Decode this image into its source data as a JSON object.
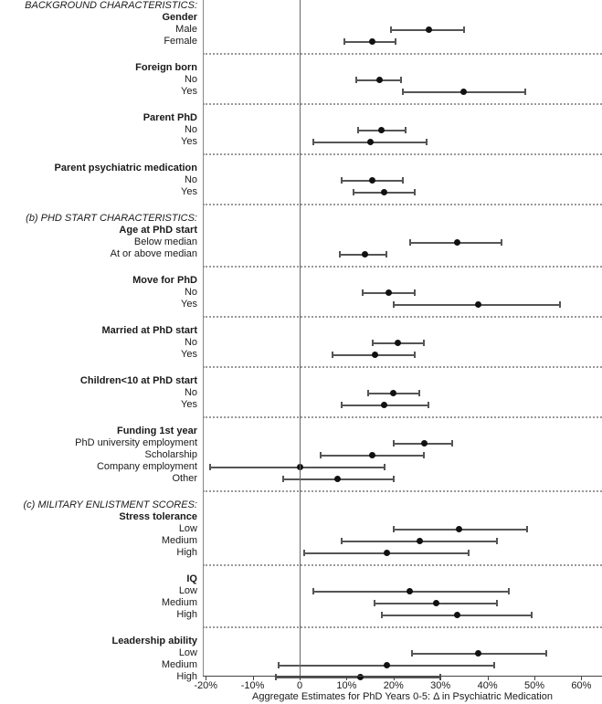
{
  "chart_data": {
    "type": "forest",
    "title": "",
    "x_axis": {
      "label": "Aggregate Estimates for PhD Years 0-5: Δ in Psychiatric Medication",
      "tick_labels": [
        "-20%",
        "-10%",
        "0",
        "10%",
        "20%",
        "30%",
        "40%",
        "50%",
        "60%"
      ],
      "tick_values": [
        -20,
        -10,
        0,
        10,
        20,
        30,
        40,
        50,
        60
      ],
      "range": [
        -20.6,
        64.4
      ],
      "unit": "%",
      "zero_reference_line": true
    },
    "legend": null,
    "grid": "dotted row separators only",
    "style": {
      "point_color": "#111111",
      "ci_color": "#555555",
      "separator_color": "#999999",
      "axis_color": "#444444",
      "zero_line_color": "#666666",
      "frame_line_color": "#888888"
    },
    "sections": [
      {
        "header": "BACKGROUND CHARACTERISTICS:",
        "groups": [
          {
            "name": "Gender",
            "items": [
              {
                "label": "Male",
                "est": 27.5,
                "lo": 19.5,
                "hi": 35
              },
              {
                "label": "Female",
                "est": 15.5,
                "lo": 9.5,
                "hi": 20.5
              }
            ]
          },
          {
            "name": "Foreign born",
            "items": [
              {
                "label": "No",
                "est": 17,
                "lo": 12,
                "hi": 21.5
              },
              {
                "label": "Yes",
                "est": 35,
                "lo": 22,
                "hi": 48
              }
            ]
          },
          {
            "name": "Parent PhD",
            "items": [
              {
                "label": "No",
                "est": 17.5,
                "lo": 12.5,
                "hi": 22.5
              },
              {
                "label": "Yes",
                "est": 15,
                "lo": 3,
                "hi": 27
              }
            ]
          },
          {
            "name": "Parent psychiatric medication",
            "items": [
              {
                "label": "No",
                "est": 15.5,
                "lo": 9,
                "hi": 22
              },
              {
                "label": "Yes",
                "est": 18,
                "lo": 11.5,
                "hi": 24.5
              }
            ]
          }
        ]
      },
      {
        "header": "(b) PHD START CHARACTERISTICS:",
        "groups": [
          {
            "name": "Age at PhD start",
            "items": [
              {
                "label": "Below median",
                "est": 33.5,
                "lo": 23.5,
                "hi": 43
              },
              {
                "label": "At or above median",
                "est": 14,
                "lo": 8.5,
                "hi": 18.5
              }
            ]
          },
          {
            "name": "Move for PhD",
            "items": [
              {
                "label": "No",
                "est": 19,
                "lo": 13.5,
                "hi": 24.5
              },
              {
                "label": "Yes",
                "est": 38,
                "lo": 20,
                "hi": 55.5
              }
            ]
          },
          {
            "name": "Married at PhD start",
            "items": [
              {
                "label": "No",
                "est": 21,
                "lo": 15.5,
                "hi": 26.5
              },
              {
                "label": "Yes",
                "est": 16,
                "lo": 7,
                "hi": 24.5
              }
            ]
          },
          {
            "name": "Children<10 at PhD start",
            "items": [
              {
                "label": "No",
                "est": 20,
                "lo": 14.5,
                "hi": 25.5
              },
              {
                "label": "Yes",
                "est": 18,
                "lo": 9,
                "hi": 27.5
              }
            ]
          },
          {
            "name": "Funding 1st year",
            "items": [
              {
                "label": "PhD university employment",
                "est": 26.5,
                "lo": 20,
                "hi": 32.5
              },
              {
                "label": "Scholarship",
                "est": 15.5,
                "lo": 4.5,
                "hi": 26.5
              },
              {
                "label": "Company employment",
                "est": 0,
                "lo": -19,
                "hi": 18
              },
              {
                "label": "Other",
                "est": 8,
                "lo": -3.5,
                "hi": 20
              }
            ]
          }
        ]
      },
      {
        "header": "(c) MILITARY ENLISTMENT SCORES:",
        "groups": [
          {
            "name": "Stress tolerance",
            "items": [
              {
                "label": "Low",
                "est": 34,
                "lo": 20,
                "hi": 48.5
              },
              {
                "label": "Medium",
                "est": 25.5,
                "lo": 9,
                "hi": 42
              },
              {
                "label": "High",
                "est": 18.5,
                "lo": 1,
                "hi": 36
              }
            ]
          },
          {
            "name": "IQ",
            "items": [
              {
                "label": "Low",
                "est": 23.5,
                "lo": 3,
                "hi": 44.5
              },
              {
                "label": "Medium",
                "est": 29,
                "lo": 16,
                "hi": 42
              },
              {
                "label": "High",
                "est": 33.5,
                "lo": 17.5,
                "hi": 49.5
              }
            ]
          },
          {
            "name": "Leadership ability",
            "items": [
              {
                "label": "Low",
                "est": 38,
                "lo": 24,
                "hi": 52.5
              },
              {
                "label": "Medium",
                "est": 18.5,
                "lo": -4.5,
                "hi": 41.5
              },
              {
                "label": "High",
                "est": 13,
                "lo": -5,
                "hi": 30
              }
            ]
          }
        ]
      }
    ]
  }
}
